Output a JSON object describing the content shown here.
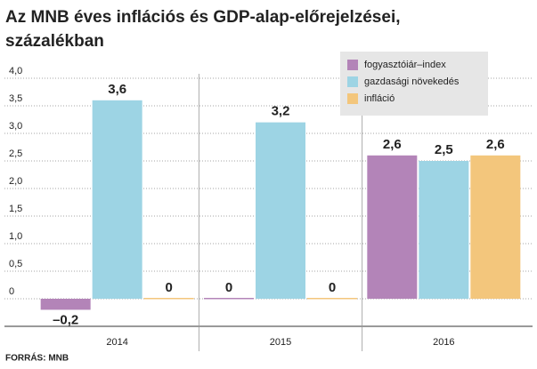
{
  "chart_data": {
    "type": "bar",
    "title": [
      "Az MNB éves inflációs és GDP-alap-előrejelzései,",
      "százalékban"
    ],
    "source": "FORRÁS: MNB",
    "categories": [
      "2014",
      "2015",
      "2016"
    ],
    "series": [
      {
        "name": "fogyasztóiár–index",
        "color": "#b384b8",
        "values": [
          -0.2,
          0,
          2.6
        ],
        "value_labels": [
          "–0,2",
          "0",
          "2,6"
        ]
      },
      {
        "name": "gazdasági növekedés",
        "color": "#9dd4e4",
        "values": [
          3.6,
          3.2,
          2.5
        ],
        "value_labels": [
          "3,6",
          "3,2",
          "2,5"
        ]
      },
      {
        "name": "infláció",
        "color": "#f3c67c",
        "values": [
          0,
          0,
          2.6
        ],
        "value_labels": [
          "0",
          "0",
          "2,6"
        ]
      }
    ],
    "ylim": [
      -0.5,
      4.0
    ],
    "yticks": [
      {
        "value": 0,
        "label": "0"
      },
      {
        "value": 0.5,
        "label": "0,5"
      },
      {
        "value": 1.0,
        "label": "1,0"
      },
      {
        "value": 1.5,
        "label": "1,5"
      },
      {
        "value": 2.0,
        "label": "2,0"
      },
      {
        "value": 2.5,
        "label": "2,5"
      },
      {
        "value": 3.0,
        "label": "3,0"
      },
      {
        "value": 3.5,
        "label": "3,5"
      },
      {
        "value": 4.0,
        "label": "4,0"
      }
    ],
    "grid": true,
    "legend": "top-right"
  }
}
